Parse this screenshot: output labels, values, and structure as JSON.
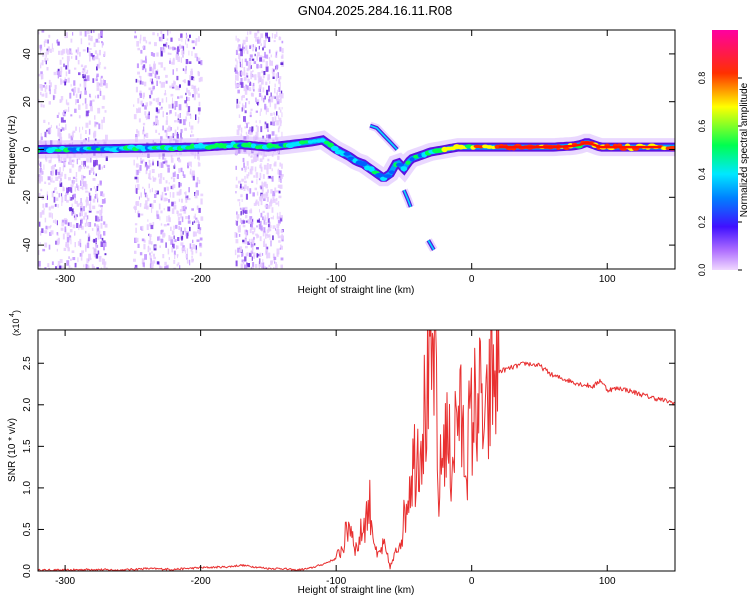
{
  "title": "GN04.2025.284.16.11.R08",
  "chart_data": [
    {
      "type": "heatmap",
      "xlabel": "Height of straight line (km)",
      "ylabel": "Frequency (Hz)",
      "xlim": [
        -320,
        150
      ],
      "ylim": [
        -50,
        50
      ],
      "xticks": [
        -300,
        -200,
        -100,
        0,
        100
      ],
      "xtick_labels": [
        "-300",
        "-200",
        "-100",
        "0",
        "100"
      ],
      "yticks": [
        -40,
        -20,
        0,
        20,
        40
      ],
      "ytick_labels": [
        "-40",
        "-20",
        "0",
        "20",
        "40"
      ],
      "colorbar": {
        "label": "Normalized spectral amplitude",
        "range": [
          0,
          1
        ],
        "ticks": [
          0.0,
          0.2,
          0.4,
          0.6,
          0.8
        ],
        "tick_labels": [
          "0.0",
          "0.2",
          "0.4",
          "0.6",
          "0.8"
        ],
        "colors": [
          "#f0d8ff",
          "#8a2be2",
          "#3020ff",
          "#00e0ff",
          "#00ff40",
          "#ffff00",
          "#ff2000",
          "#ff00a0"
        ]
      },
      "ridge": {
        "x": [
          -320,
          -250,
          -200,
          -170,
          -150,
          -135,
          -120,
          -110,
          -100,
          -90,
          -85,
          -80,
          -75,
          -70,
          -65,
          -60,
          -55,
          -50,
          -45,
          -40,
          -30,
          -20,
          -10,
          0,
          20,
          40,
          60,
          75,
          80,
          85,
          90,
          95,
          100,
          120,
          150
        ],
        "y": [
          0,
          0.5,
          1,
          2,
          1,
          2,
          3,
          4,
          0,
          -3,
          -5,
          -6,
          -8,
          -10,
          -12,
          -10,
          -5,
          -8,
          -4,
          -3,
          -1,
          0,
          1,
          1,
          1,
          1,
          1,
          1.5,
          2,
          3,
          2,
          1,
          1,
          1,
          1
        ],
        "amplitude": [
          0.45,
          0.5,
          0.6,
          0.5,
          0.55,
          0.5,
          0.55,
          0.6,
          0.5,
          0.45,
          0.45,
          0.4,
          0.45,
          0.5,
          0.45,
          0.4,
          0.5,
          0.4,
          0.45,
          0.5,
          0.6,
          0.7,
          0.75,
          0.8,
          0.9,
          0.92,
          0.9,
          0.85,
          0.8,
          0.95,
          0.8,
          0.9,
          0.88,
          0.85,
          0.85
        ]
      },
      "side_branches": [
        {
          "x": [
            -75,
            -70,
            -65,
            -60,
            -55
          ],
          "y": [
            10,
            9,
            6,
            3,
            0
          ]
        },
        {
          "x": [
            -50,
            -47,
            -45
          ],
          "y": [
            -17,
            -21,
            -24
          ]
        },
        {
          "x": [
            -32,
            -28
          ],
          "y": [
            -38,
            -42
          ]
        }
      ],
      "scatter_bands_km": [
        [
          -320,
          -270
        ],
        [
          -250,
          -200
        ],
        [
          -175,
          -140
        ]
      ]
    },
    {
      "type": "line",
      "xlabel": "Height of straight line (km)",
      "ylabel": "SNR (10 * v/v)",
      "multiplier_label": "(x10",
      "multiplier_exp": "4",
      "xlim": [
        -320,
        150
      ],
      "ylim": [
        0,
        2.9
      ],
      "xticks": [
        -300,
        -200,
        -100,
        0,
        100
      ],
      "xtick_labels": [
        "-300",
        "-200",
        "-100",
        "0",
        "100"
      ],
      "yticks": [
        0.0,
        0.5,
        1.0,
        1.5,
        2.0,
        2.5
      ],
      "ytick_labels": [
        "0.0",
        "0.5",
        "1.0",
        "1.5",
        "2.0",
        "2.5"
      ],
      "line_color": "#e83030",
      "series": [
        {
          "name": "SNR",
          "x": [
            -320,
            -300,
            -280,
            -260,
            -240,
            -220,
            -200,
            -180,
            -170,
            -160,
            -150,
            -140,
            -130,
            -120,
            -110,
            -100,
            -95,
            -90,
            -85,
            -80,
            -75,
            -70,
            -65,
            -60,
            -55,
            -50,
            -45,
            -40,
            -35,
            -30,
            -27,
            -25,
            -20,
            -15,
            -10,
            -5,
            0,
            5,
            10,
            15,
            20,
            30,
            40,
            50,
            60,
            70,
            80,
            90,
            95,
            100,
            110,
            120,
            130,
            140,
            150
          ],
          "y": [
            0.01,
            0.01,
            0.02,
            0.01,
            0.03,
            0.02,
            0.04,
            0.05,
            0.07,
            0.05,
            0.03,
            0.03,
            0.01,
            0.03,
            0.08,
            0.15,
            0.3,
            0.6,
            0.25,
            0.55,
            0.8,
            0.15,
            0.3,
            0.05,
            0.25,
            0.6,
            1.2,
            1.5,
            1.9,
            2.2,
            2.85,
            0.8,
            1.7,
            1.3,
            2.0,
            1.4,
            1.8,
            2.15,
            1.6,
            2.3,
            2.4,
            2.45,
            2.5,
            2.47,
            2.35,
            2.3,
            2.25,
            2.22,
            2.3,
            2.18,
            2.2,
            2.15,
            2.1,
            2.06,
            2.02
          ]
        }
      ]
    }
  ]
}
